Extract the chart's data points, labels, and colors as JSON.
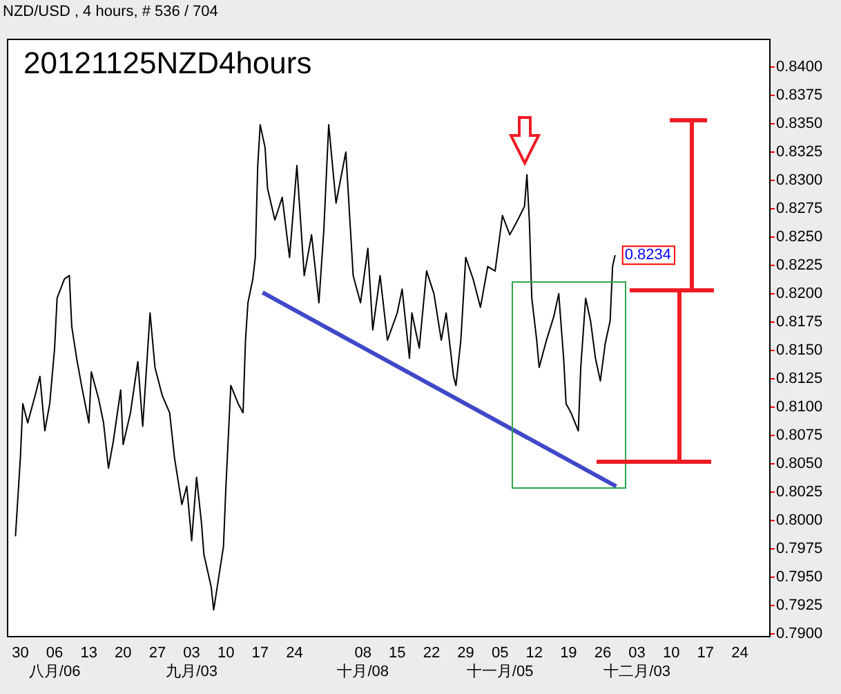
{
  "chart_data": {
    "type": "line",
    "title": "20121125NZD4hours",
    "subtitle": "NZD/USD , 4 hours, # 536 / 704",
    "marker": "none",
    "line_style": "solid",
    "xlim": [
      "2012-07-27T06:00",
      "2012-12-30"
    ],
    "xticks": [
      {
        "value": "2012-07-30",
        "label": "30"
      },
      {
        "value": "2012-08-06",
        "label": "06\n八月/06"
      },
      {
        "value": "2012-08-13",
        "label": "13"
      },
      {
        "value": "2012-08-20",
        "label": "20"
      },
      {
        "value": "2012-08-27",
        "label": "27"
      },
      {
        "value": "2012-09-03",
        "label": "03\n九月/03"
      },
      {
        "value": "2012-09-10",
        "label": "10"
      },
      {
        "value": "2012-09-17",
        "label": "17"
      },
      {
        "value": "2012-09-24",
        "label": "24"
      },
      {
        "value": "2012-10-08",
        "label": "08\n十月/08"
      },
      {
        "value": "2012-10-15",
        "label": "15"
      },
      {
        "value": "2012-10-22",
        "label": "22"
      },
      {
        "value": "2012-10-29",
        "label": "29"
      },
      {
        "value": "2012-11-05",
        "label": "05\n十一月/05"
      },
      {
        "value": "2012-11-12",
        "label": "12"
      },
      {
        "value": "2012-11-19",
        "label": "19"
      },
      {
        "value": "2012-11-26",
        "label": "26"
      },
      {
        "value": "2012-12-03",
        "label": "03\n十二月/03"
      },
      {
        "value": "2012-12-10",
        "label": "10"
      },
      {
        "value": "2012-12-17",
        "label": "17"
      },
      {
        "value": "2012-12-24",
        "label": "24"
      }
    ],
    "ylim": [
      0.7898,
      0.8425
    ],
    "yticks": [
      {
        "value": 0.79,
        "label": "0.7900"
      },
      {
        "value": 0.7925,
        "label": "0.7925"
      },
      {
        "value": 0.795,
        "label": "0.7950"
      },
      {
        "value": 0.7975,
        "label": "0.7975"
      },
      {
        "value": 0.8,
        "label": "0.8000"
      },
      {
        "value": 0.8025,
        "label": "0.8025"
      },
      {
        "value": 0.805,
        "label": "0.8050"
      },
      {
        "value": 0.8075,
        "label": "0.8075"
      },
      {
        "value": 0.81,
        "label": "0.8100"
      },
      {
        "value": 0.8125,
        "label": "0.8125"
      },
      {
        "value": 0.815,
        "label": "0.8150"
      },
      {
        "value": 0.8175,
        "label": "0.8175"
      },
      {
        "value": 0.82,
        "label": "0.8200"
      },
      {
        "value": 0.8225,
        "label": "0.8225"
      },
      {
        "value": 0.825,
        "label": "0.8250"
      },
      {
        "value": 0.8275,
        "label": "0.8275"
      },
      {
        "value": 0.83,
        "label": "0.8300"
      },
      {
        "value": 0.8325,
        "label": "0.8325"
      },
      {
        "value": 0.835,
        "label": "0.8350"
      },
      {
        "value": 0.8375,
        "label": "0.8375"
      },
      {
        "value": 0.84,
        "label": "0.8400"
      }
    ],
    "annotations": [
      {
        "text": "0.8234",
        "x": "2012-11-28T12:00",
        "y": 0.8234
      }
    ],
    "series": [
      {
        "color": "#000000",
        "x": [
          "2012-07-29T00:00",
          "2012-07-30T00:00",
          "2012-07-30T12:00",
          "2012-07-31T12:00",
          "2012-08-02T00:00",
          "2012-08-03T00:00",
          "2012-08-04T00:00",
          "2012-08-05T00:00",
          "2012-08-06T00:00",
          "2012-08-06T12:00",
          "2012-08-08T00:00",
          "2012-08-09T00:00",
          "2012-08-09T12:00",
          "2012-08-10T12:00",
          "2012-08-11T12:00",
          "2012-08-13T00:00",
          "2012-08-13T12:00",
          "2012-08-15T00:00",
          "2012-08-16T00:00",
          "2012-08-17T00:00",
          "2012-08-18T00:00",
          "2012-08-19T12:00",
          "2012-08-20T00:00",
          "2012-08-21T12:00",
          "2012-08-23T00:00",
          "2012-08-24T00:00",
          "2012-08-25T12:00",
          "2012-08-26T12:00",
          "2012-08-28T00:00",
          "2012-08-29T12:00",
          "2012-08-30T12:00",
          "2012-09-01T00:00",
          "2012-09-02T00:00",
          "2012-09-03T00:00",
          "2012-09-04T00:00",
          "2012-09-05T00:00",
          "2012-09-05T12:00",
          "2012-09-07T00:00",
          "2012-09-07T12:00",
          "2012-09-08T12:00",
          "2012-09-09T12:00",
          "2012-09-10T00:00",
          "2012-09-11T00:00",
          "2012-09-12T12:00",
          "2012-09-13T12:00",
          "2012-09-14T00:00",
          "2012-09-14T12:00",
          "2012-09-15T12:00",
          "2012-09-16T00:00",
          "2012-09-16T12:00",
          "2012-09-17T00:00",
          "2012-09-18T00:00",
          "2012-09-18T12:00",
          "2012-09-20T00:00",
          "2012-09-21T12:00",
          "2012-09-23T00:00",
          "2012-09-24T12:00",
          "2012-09-26T00:00",
          "2012-09-27T12:00",
          "2012-09-29T00:00",
          "2012-09-30T00:00",
          "2012-10-01T00:00",
          "2012-10-02T12:00",
          "2012-10-04T12:00",
          "2012-10-06T00:00",
          "2012-10-07T12:00",
          "2012-10-09T00:00",
          "2012-10-10T00:00",
          "2012-10-11T12:00",
          "2012-10-13T00:00",
          "2012-10-15T00:00",
          "2012-10-16T00:00",
          "2012-10-17T12:00",
          "2012-10-18T00:00",
          "2012-10-19T12:00",
          "2012-10-21T00:00",
          "2012-10-22T12:00",
          "2012-10-24T00:00",
          "2012-10-25T00:00",
          "2012-10-26T12:00",
          "2012-10-27T00:00",
          "2012-10-28T00:00",
          "2012-10-29T00:00",
          "2012-10-30T12:00",
          "2012-11-01T00:00",
          "2012-11-02T12:00",
          "2012-11-04T00:00",
          "2012-11-05T12:00",
          "2012-11-07T00:00",
          "2012-11-08T12:00",
          "2012-11-10T00:00",
          "2012-11-10T12:00",
          "2012-11-11T00:00",
          "2012-11-11T12:00",
          "2012-11-12T12:00",
          "2012-11-13T00:00",
          "2012-11-14T12:00",
          "2012-11-16T00:00",
          "2012-11-17T00:00",
          "2012-11-18T00:00",
          "2012-11-18T12:00",
          "2012-11-19T12:00",
          "2012-11-21T00:00",
          "2012-11-21T12:00",
          "2012-11-22T12:00",
          "2012-11-23T12:00",
          "2012-11-24T12:00",
          "2012-11-25T12:00",
          "2012-11-26T12:00",
          "2012-11-27T12:00",
          "2012-11-28T00:00",
          "2012-11-28T12:00"
        ],
        "values": [
          0.7986,
          0.8055,
          0.8103,
          0.8086,
          0.811,
          0.8127,
          0.8079,
          0.8103,
          0.8152,
          0.8196,
          0.8213,
          0.8216,
          0.8171,
          0.8143,
          0.8119,
          0.8086,
          0.8131,
          0.8107,
          0.8086,
          0.8046,
          0.807,
          0.8115,
          0.8067,
          0.8095,
          0.814,
          0.8083,
          0.8183,
          0.8135,
          0.811,
          0.8095,
          0.8055,
          0.8014,
          0.803,
          0.7982,
          0.8038,
          0.7998,
          0.797,
          0.7941,
          0.7921,
          0.7949,
          0.7977,
          0.803,
          0.8119,
          0.8103,
          0.8095,
          0.8159,
          0.8192,
          0.8213,
          0.8232,
          0.8313,
          0.8349,
          0.8329,
          0.8293,
          0.8265,
          0.8285,
          0.8232,
          0.8313,
          0.8216,
          0.8252,
          0.8192,
          0.8256,
          0.8349,
          0.828,
          0.8325,
          0.8216,
          0.8192,
          0.824,
          0.8168,
          0.8216,
          0.8159,
          0.8183,
          0.8204,
          0.8143,
          0.8183,
          0.8152,
          0.822,
          0.82,
          0.8159,
          0.8183,
          0.8127,
          0.8119,
          0.8159,
          0.8232,
          0.8213,
          0.8188,
          0.8224,
          0.822,
          0.8269,
          0.8252,
          0.8264,
          0.8277,
          0.8305,
          0.8264,
          0.8196,
          0.8159,
          0.8135,
          0.8159,
          0.818,
          0.82,
          0.8143,
          0.8103,
          0.8095,
          0.8079,
          0.8135,
          0.8196,
          0.8176,
          0.8143,
          0.8123,
          0.8156,
          0.8176,
          0.8224,
          0.8234
        ]
      },
      {
        "color": "#4048c8",
        "x": [
          "2012-09-17T12:00",
          "2012-11-28T18:00"
        ],
        "values": [
          0.8201,
          0.803
        ]
      }
    ]
  }
}
